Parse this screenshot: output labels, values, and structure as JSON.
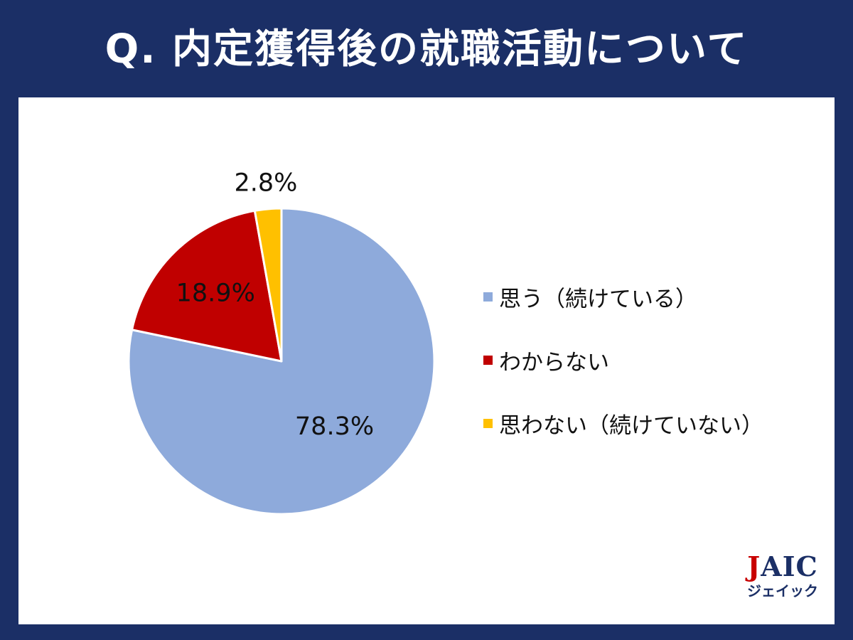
{
  "header": {
    "title": "Q. 内定獲得後の就職活動について"
  },
  "chart_data": {
    "type": "pie",
    "start_angle_deg": 0,
    "direction": "clockwise",
    "slices": [
      {
        "name": "思う（続けている）",
        "value": 78.3,
        "label": "78.3%",
        "color": "#8eaadb"
      },
      {
        "name": "わからない",
        "value": 18.9,
        "label": "18.9%",
        "color": "#c00000"
      },
      {
        "name": "思わない（続けていない）",
        "value": 2.8,
        "label": "2.8%",
        "color": "#ffc000"
      }
    ],
    "legend_position": "right"
  },
  "logo": {
    "main": "JAIC",
    "sub": "ジェイック"
  }
}
